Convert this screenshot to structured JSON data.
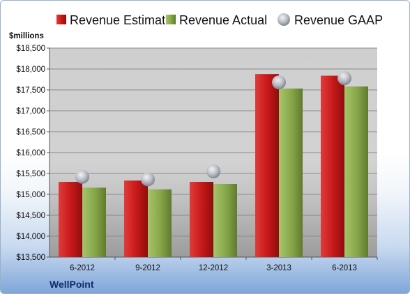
{
  "chart_data": {
    "type": "bar",
    "title": "",
    "ylabel": "$millions",
    "xlabel": "",
    "brand": "WellPoint",
    "legend_position": "top",
    "grid": true,
    "categories": [
      "6-2012",
      "9-2012",
      "12-2012",
      "3-2013",
      "6-2013"
    ],
    "ylim": [
      13500,
      18500
    ],
    "y_ticks": [
      13500,
      14000,
      14500,
      15000,
      15500,
      16000,
      16500,
      17000,
      17500,
      18000,
      18500
    ],
    "y_tick_labels": [
      "$13,500",
      "$14,000",
      "$14,500",
      "$15,000",
      "$15,500",
      "$16,000",
      "$16,500",
      "$17,000",
      "$17,500",
      "$18,000",
      "$18,500"
    ],
    "series": [
      {
        "name": "Revenue Estimate",
        "type": "bar",
        "color": "#cc1f1f",
        "values": [
          15300,
          15330,
          15300,
          17880,
          17840
        ]
      },
      {
        "name": "Revenue Actual",
        "type": "bar",
        "color": "#8fae4e",
        "values": [
          15160,
          15120,
          15250,
          17530,
          17580
        ]
      },
      {
        "name": "Revenue GAAP",
        "type": "marker",
        "color": "#b8bec8",
        "values": [
          15420,
          15360,
          15550,
          17680,
          17780
        ]
      }
    ]
  }
}
